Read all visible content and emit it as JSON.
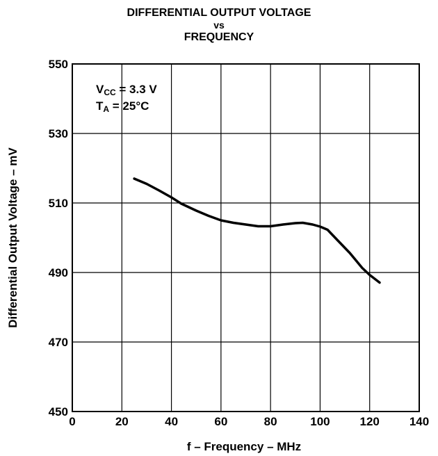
{
  "chart_data": {
    "type": "line",
    "title_lines": [
      "DIFFERENTIAL OUTPUT VOLTAGE",
      "vs",
      "FREQUENCY"
    ],
    "xlabel": "f – Frequency – MHz",
    "ylabel": "Differential Output Voltage – mV",
    "xlim": [
      0,
      140
    ],
    "ylim": [
      450,
      550
    ],
    "xticks": [
      0,
      20,
      40,
      60,
      80,
      100,
      120,
      140
    ],
    "yticks": [
      450,
      470,
      490,
      510,
      530,
      550
    ],
    "grid": true,
    "annotations": {
      "vcc": {
        "base": "V",
        "sub": "CC",
        "rest": " = 3.3 V"
      },
      "ta": {
        "base": "T",
        "sub": "A",
        "rest": " = 25°C"
      }
    },
    "series": [
      {
        "x": [
          25,
          30,
          35,
          40,
          44,
          50,
          55,
          60,
          65,
          70,
          75,
          80,
          85,
          90,
          93,
          97,
          100,
          103,
          107,
          112,
          117,
          120,
          124
        ],
        "y": [
          517,
          515.5,
          513.6,
          511.6,
          509.8,
          507.8,
          506.3,
          505,
          504.3,
          503.8,
          503.3,
          503.3,
          503.8,
          504.2,
          504.3,
          503.8,
          503.2,
          502.3,
          499.3,
          495.6,
          491.3,
          489.3,
          487.1
        ]
      }
    ]
  }
}
